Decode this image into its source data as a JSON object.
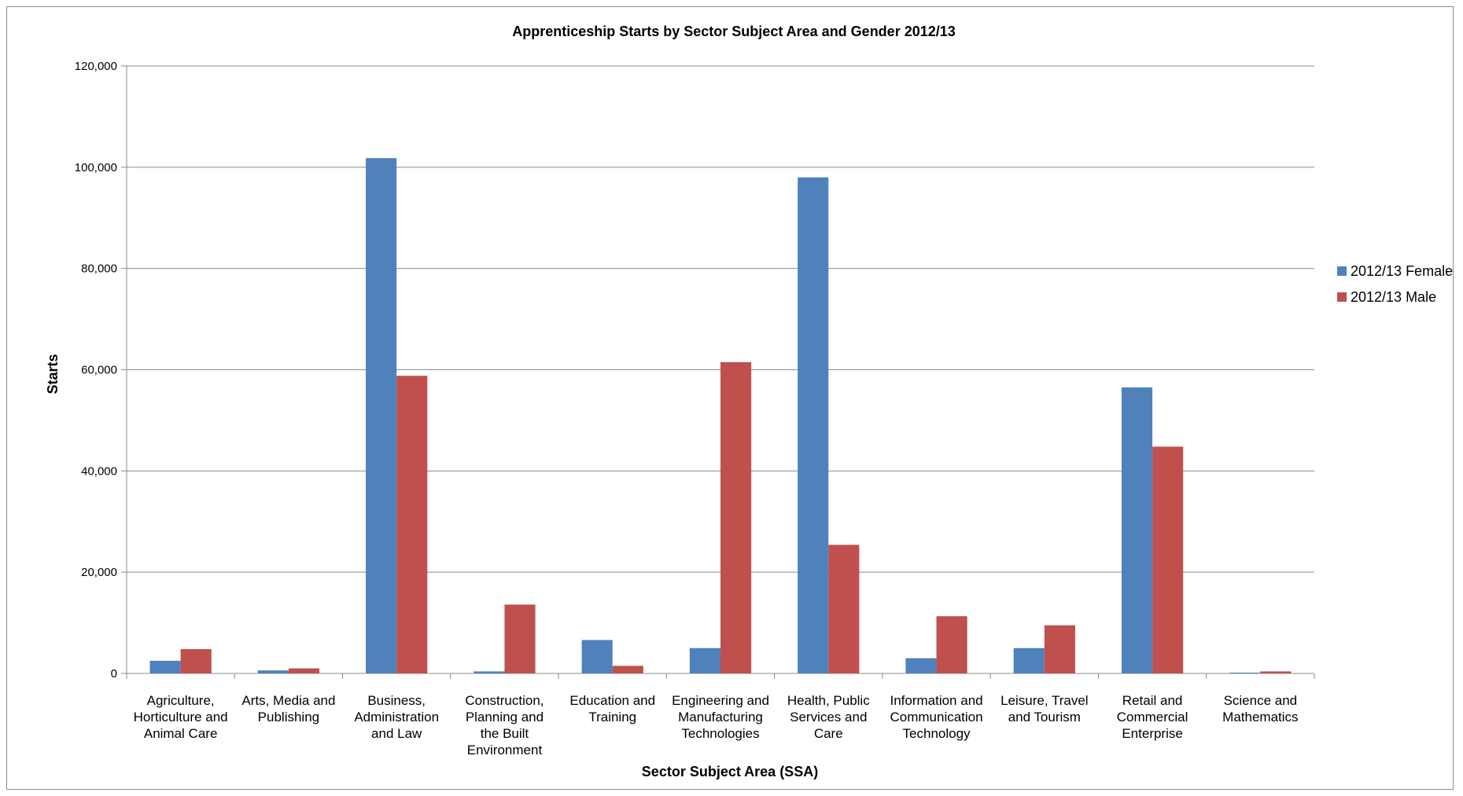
{
  "chart_data": {
    "type": "bar",
    "title": "Apprenticeship Starts by Sector Subject Area and Gender 2012/13",
    "xlabel": "Sector Subject Area (SSA)",
    "ylabel": "Starts",
    "ylim": [
      0,
      120000
    ],
    "yticks": [
      0,
      20000,
      40000,
      60000,
      80000,
      100000,
      120000
    ],
    "ytick_labels": [
      "0",
      "20,000",
      "40,000",
      "60,000",
      "80,000",
      "100,000",
      "120,000"
    ],
    "grid": true,
    "legend_position": "right",
    "categories": [
      [
        "Agriculture,",
        "Horticulture and",
        "Animal Care"
      ],
      [
        "Arts, Media and",
        "Publishing"
      ],
      [
        "Business,",
        "Administration",
        "and Law"
      ],
      [
        "Construction,",
        "Planning and",
        "the Built",
        "Environment"
      ],
      [
        "Education and",
        "Training"
      ],
      [
        "Engineering and",
        "Manufacturing",
        "Technologies"
      ],
      [
        "Health, Public",
        "Services and",
        "Care"
      ],
      [
        "Information and",
        "Communication",
        "Technology"
      ],
      [
        "Leisure, Travel",
        "and Tourism"
      ],
      [
        "Retail and",
        "Commercial",
        "Enterprise"
      ],
      [
        "Science and",
        "Mathematics"
      ]
    ],
    "series": [
      {
        "name": "2012/13 Female",
        "color": "#4f81bd",
        "values": [
          2500,
          600,
          101800,
          400,
          6600,
          5000,
          98000,
          3000,
          5000,
          56500,
          150
        ]
      },
      {
        "name": "2012/13 Male",
        "color": "#c0504d",
        "values": [
          4800,
          1000,
          58800,
          13600,
          1500,
          61500,
          25400,
          11300,
          9500,
          44800,
          400
        ]
      }
    ]
  }
}
